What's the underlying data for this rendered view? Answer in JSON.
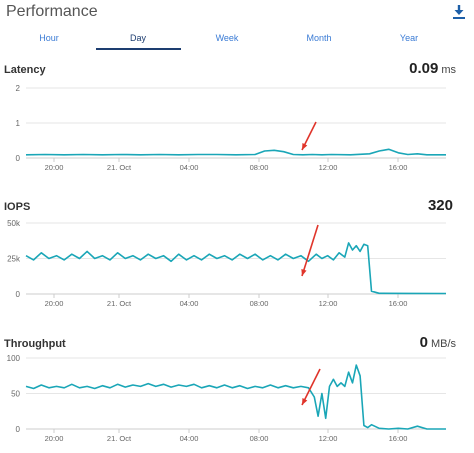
{
  "header": {
    "title": "Performance",
    "download_icon": "download-icon"
  },
  "tabs": [
    {
      "label": "Hour",
      "active": false
    },
    {
      "label": "Day",
      "active": true
    },
    {
      "label": "Week",
      "active": false
    },
    {
      "label": "Month",
      "active": false
    },
    {
      "label": "Year",
      "active": false
    }
  ],
  "colors": {
    "line": "#1aa6b7",
    "arrow": "#e0352b",
    "tab_active": "#1d3d70",
    "tab": "#3a7bd5"
  },
  "chart_data": [
    {
      "type": "line",
      "title": "Latency",
      "current_value": "0.09",
      "unit": "ms",
      "ylim": [
        0,
        2
      ],
      "y_ticks": [
        "0",
        "1",
        "2"
      ],
      "x_ticks": [
        "20:00",
        "21. Oct",
        "04:00",
        "08:00",
        "12:00",
        "16:00"
      ],
      "series": [
        {
          "x": [
            0,
            2,
            4,
            6,
            8,
            10,
            12,
            14,
            16,
            18,
            20,
            22,
            24,
            25,
            26,
            27,
            28,
            29,
            30,
            31,
            32,
            34,
            36,
            37,
            38,
            39,
            40,
            41,
            42,
            44
          ],
          "values": [
            0.09,
            0.1,
            0.09,
            0.1,
            0.09,
            0.1,
            0.09,
            0.1,
            0.09,
            0.1,
            0.1,
            0.09,
            0.1,
            0.2,
            0.22,
            0.18,
            0.1,
            0.09,
            0.1,
            0.09,
            0.1,
            0.09,
            0.12,
            0.2,
            0.25,
            0.15,
            0.1,
            0.12,
            0.09,
            0.09
          ]
        }
      ],
      "annotation": "arrow"
    },
    {
      "type": "line",
      "title": "IOPS",
      "current_value": "320",
      "unit": "",
      "ylim": [
        0,
        50000
      ],
      "y_ticks": [
        "0",
        "25k",
        "50k"
      ],
      "x_ticks": [
        "20:00",
        "21. Oct",
        "04:00",
        "08:00",
        "12:00",
        "16:00"
      ],
      "series": [
        {
          "x": [
            0,
            0.8,
            1.6,
            2.4,
            3.2,
            4,
            4.8,
            5.6,
            6.4,
            7.2,
            8,
            8.8,
            9.6,
            10.4,
            11.2,
            12,
            12.8,
            13.6,
            14.4,
            15.2,
            16,
            16.8,
            17.6,
            18.4,
            19.2,
            20,
            20.8,
            21.6,
            22.4,
            23.2,
            24,
            24.8,
            25.6,
            26.4,
            27.2,
            28,
            28.8,
            29.6,
            30.4,
            31,
            31.6,
            32.2,
            32.8,
            33.4,
            33.8,
            34.2,
            34.6,
            35,
            35.4,
            35.8,
            36.2,
            37,
            40,
            44
          ],
          "values": [
            27000,
            24000,
            29000,
            25000,
            27000,
            24000,
            28000,
            25000,
            30000,
            25000,
            27000,
            24000,
            29000,
            25000,
            27000,
            24000,
            28000,
            25000,
            27000,
            23000,
            28000,
            24000,
            27000,
            24000,
            28000,
            25000,
            27000,
            24000,
            28000,
            25000,
            28000,
            24000,
            27000,
            24000,
            28000,
            25000,
            27000,
            23000,
            28000,
            25000,
            27000,
            24000,
            29000,
            26000,
            36000,
            31000,
            34000,
            30000,
            35000,
            34000,
            2000,
            500,
            400,
            320
          ]
        }
      ],
      "annotation": "arrow"
    },
    {
      "type": "line",
      "title": "Throughput",
      "current_value": "0",
      "unit": "MB/s",
      "ylim": [
        0,
        100
      ],
      "y_ticks": [
        "0",
        "50",
        "100"
      ],
      "x_ticks": [
        "20:00",
        "21. Oct",
        "04:00",
        "08:00",
        "12:00",
        "16:00"
      ],
      "series": [
        {
          "x": [
            0,
            0.8,
            1.6,
            2.4,
            3.2,
            4,
            4.8,
            5.6,
            6.4,
            7.2,
            8,
            8.8,
            9.6,
            10.4,
            11.2,
            12,
            12.8,
            13.6,
            14.4,
            15.2,
            16,
            16.8,
            17.6,
            18.4,
            19.2,
            20,
            20.8,
            21.6,
            22.4,
            23.2,
            24,
            24.8,
            25.6,
            26.4,
            27.2,
            28,
            28.8,
            29.6,
            30.2,
            30.6,
            31,
            31.4,
            31.8,
            32.2,
            32.6,
            33,
            33.4,
            33.8,
            34.2,
            34.6,
            35,
            35.4,
            35.8,
            36.2,
            37,
            38,
            39,
            40,
            41,
            42,
            44
          ],
          "values": [
            60,
            57,
            62,
            58,
            60,
            58,
            63,
            58,
            60,
            57,
            61,
            58,
            63,
            59,
            62,
            60,
            64,
            60,
            63,
            59,
            62,
            60,
            63,
            58,
            61,
            58,
            62,
            58,
            61,
            57,
            60,
            58,
            62,
            58,
            61,
            58,
            60,
            58,
            45,
            18,
            50,
            15,
            60,
            70,
            60,
            65,
            60,
            80,
            65,
            90,
            75,
            5,
            2,
            6,
            1,
            0,
            1,
            0,
            4,
            0,
            0
          ]
        }
      ],
      "annotation": "arrow"
    }
  ]
}
